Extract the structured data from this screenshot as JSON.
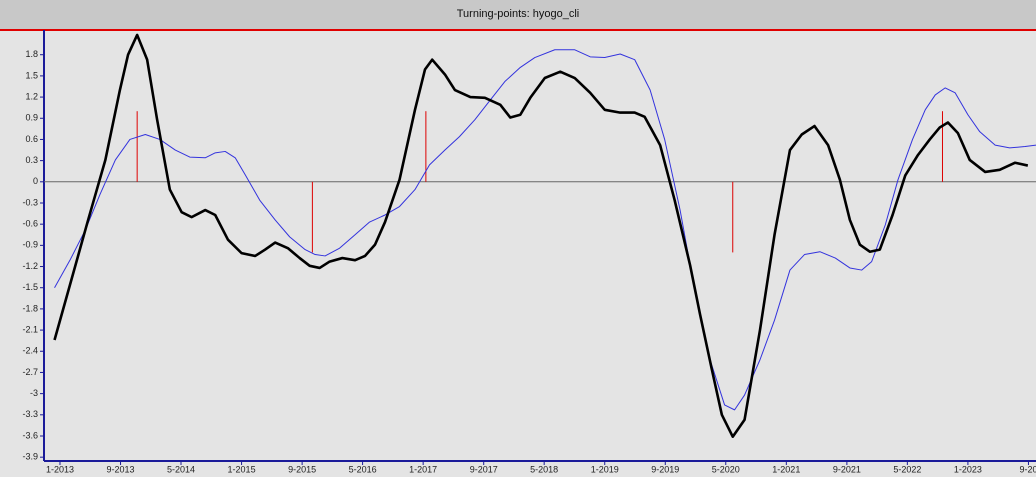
{
  "chart_data": {
    "type": "line",
    "title": "Turning-points: hyogo_cli",
    "xlim": [
      2012.824,
      2023.75
    ],
    "xticks": [
      {
        "value": 2013.0,
        "label": "1-2013"
      },
      {
        "value": 2013.667,
        "label": "9-2013"
      },
      {
        "value": 2014.333,
        "label": "5-2014"
      },
      {
        "value": 2015.0,
        "label": "1-2015"
      },
      {
        "value": 2015.667,
        "label": "9-2015"
      },
      {
        "value": 2016.333,
        "label": "5-2016"
      },
      {
        "value": 2017.0,
        "label": "1-2017"
      },
      {
        "value": 2017.667,
        "label": "9-2017"
      },
      {
        "value": 2018.333,
        "label": "5-2018"
      },
      {
        "value": 2019.0,
        "label": "1-2019"
      },
      {
        "value": 2019.667,
        "label": "9-2019"
      },
      {
        "value": 2020.333,
        "label": "5-2020"
      },
      {
        "value": 2021.0,
        "label": "1-2021"
      },
      {
        "value": 2021.667,
        "label": "9-2021"
      },
      {
        "value": 2022.333,
        "label": "5-2022"
      },
      {
        "value": 2023.0,
        "label": "1-2023"
      },
      {
        "value": 2023.667,
        "label": "9-20"
      }
    ],
    "ylim": [
      -3.94,
      2.15
    ],
    "yticks": [
      1.8,
      1.5,
      1.2,
      0.9,
      0.6,
      0.3,
      0,
      -0.3,
      -0.6,
      -0.9,
      -1.2,
      -1.5,
      -1.8,
      -2.1,
      -2.4,
      -2.7,
      -3,
      -3.3,
      -3.6,
      -3.9
    ],
    "series": [
      {
        "color": "#000000",
        "x": [
          2012.94,
          2013.11,
          2013.31,
          2013.5,
          2013.66,
          2013.75,
          2013.85,
          2013.96,
          2014.07,
          2014.21,
          2014.34,
          2014.45,
          2014.6,
          2014.71,
          2014.85,
          2015.0,
          2015.15,
          2015.26,
          2015.37,
          2015.51,
          2015.64,
          2015.75,
          2015.86,
          2015.97,
          2016.11,
          2016.25,
          2016.36,
          2016.47,
          2016.58,
          2016.74,
          2016.91,
          2017.02,
          2017.1,
          2017.24,
          2017.35,
          2017.52,
          2017.68,
          2017.85,
          2017.96,
          2018.07,
          2018.18,
          2018.34,
          2018.51,
          2018.67,
          2018.84,
          2019.0,
          2019.17,
          2019.33,
          2019.44,
          2019.61,
          2019.77,
          2019.94,
          2020.05,
          2020.18,
          2020.29,
          2020.41,
          2020.54,
          2020.71,
          2020.87,
          2021.04,
          2021.17,
          2021.31,
          2021.46,
          2021.59,
          2021.7,
          2021.81,
          2021.92,
          2022.03,
          2022.17,
          2022.31,
          2022.45,
          2022.58,
          2022.69,
          2022.78,
          2022.89,
          2023.02,
          2023.19,
          2023.35,
          2023.52,
          2023.66
        ],
        "values": [
          -2.24,
          -1.46,
          -0.54,
          0.31,
          1.3,
          1.8,
          2.08,
          1.73,
          0.88,
          -0.11,
          -0.43,
          -0.5,
          -0.4,
          -0.47,
          -0.82,
          -1.01,
          -1.05,
          -0.96,
          -0.86,
          -0.94,
          -1.08,
          -1.19,
          -1.22,
          -1.13,
          -1.08,
          -1.11,
          -1.05,
          -0.89,
          -0.57,
          0.03,
          1.02,
          1.59,
          1.73,
          1.52,
          1.3,
          1.2,
          1.19,
          1.09,
          0.91,
          0.95,
          1.19,
          1.47,
          1.56,
          1.47,
          1.26,
          1.02,
          0.98,
          0.98,
          0.92,
          0.52,
          -0.26,
          -1.18,
          -1.88,
          -2.66,
          -3.3,
          -3.61,
          -3.37,
          -2.1,
          -0.75,
          0.45,
          0.67,
          0.79,
          0.52,
          0.03,
          -0.54,
          -0.89,
          -0.99,
          -0.96,
          -0.47,
          0.09,
          0.38,
          0.6,
          0.77,
          0.84,
          0.69,
          0.31,
          0.14,
          0.17,
          0.27,
          0.23
        ]
      },
      {
        "color": "#3333dd",
        "x": [
          2012.94,
          2013.11,
          2013.28,
          2013.44,
          2013.61,
          2013.77,
          2013.94,
          2014.1,
          2014.27,
          2014.43,
          2014.6,
          2014.71,
          2014.82,
          2014.93,
          2015.04,
          2015.2,
          2015.37,
          2015.53,
          2015.7,
          2015.81,
          2015.92,
          2016.08,
          2016.25,
          2016.41,
          2016.58,
          2016.74,
          2016.91,
          2017.07,
          2017.24,
          2017.4,
          2017.57,
          2017.74,
          2017.9,
          2018.07,
          2018.23,
          2018.45,
          2018.67,
          2018.84,
          2019.0,
          2019.17,
          2019.33,
          2019.5,
          2019.66,
          2019.83,
          2019.99,
          2020.16,
          2020.32,
          2020.43,
          2020.54,
          2020.71,
          2020.87,
          2021.04,
          2021.2,
          2021.37,
          2021.54,
          2021.7,
          2021.83,
          2021.94,
          2022.09,
          2022.23,
          2022.39,
          2022.53,
          2022.64,
          2022.75,
          2022.86,
          2023.0,
          2023.13,
          2023.3,
          2023.46,
          2023.63,
          2023.75
        ],
        "values": [
          -1.5,
          -1.11,
          -0.68,
          -0.18,
          0.31,
          0.6,
          0.67,
          0.6,
          0.45,
          0.35,
          0.34,
          0.41,
          0.43,
          0.34,
          0.1,
          -0.26,
          -0.54,
          -0.78,
          -0.96,
          -1.03,
          -1.05,
          -0.94,
          -0.75,
          -0.57,
          -0.47,
          -0.35,
          -0.11,
          0.24,
          0.45,
          0.64,
          0.88,
          1.16,
          1.42,
          1.62,
          1.76,
          1.87,
          1.87,
          1.77,
          1.76,
          1.81,
          1.73,
          1.3,
          0.6,
          -0.4,
          -1.53,
          -2.52,
          -3.16,
          -3.23,
          -3.02,
          -2.52,
          -1.96,
          -1.25,
          -1.03,
          -0.99,
          -1.08,
          -1.22,
          -1.25,
          -1.13,
          -0.61,
          0.03,
          0.6,
          1.02,
          1.23,
          1.33,
          1.26,
          0.95,
          0.71,
          0.52,
          0.48,
          0.5,
          0.52
        ]
      }
    ],
    "turning_points": {
      "color": "#dd0000",
      "x": [
        2013.85,
        2015.78,
        2017.03,
        2020.41,
        2022.72
      ],
      "values": [
        1,
        -1,
        1,
        -1,
        1
      ]
    }
  }
}
